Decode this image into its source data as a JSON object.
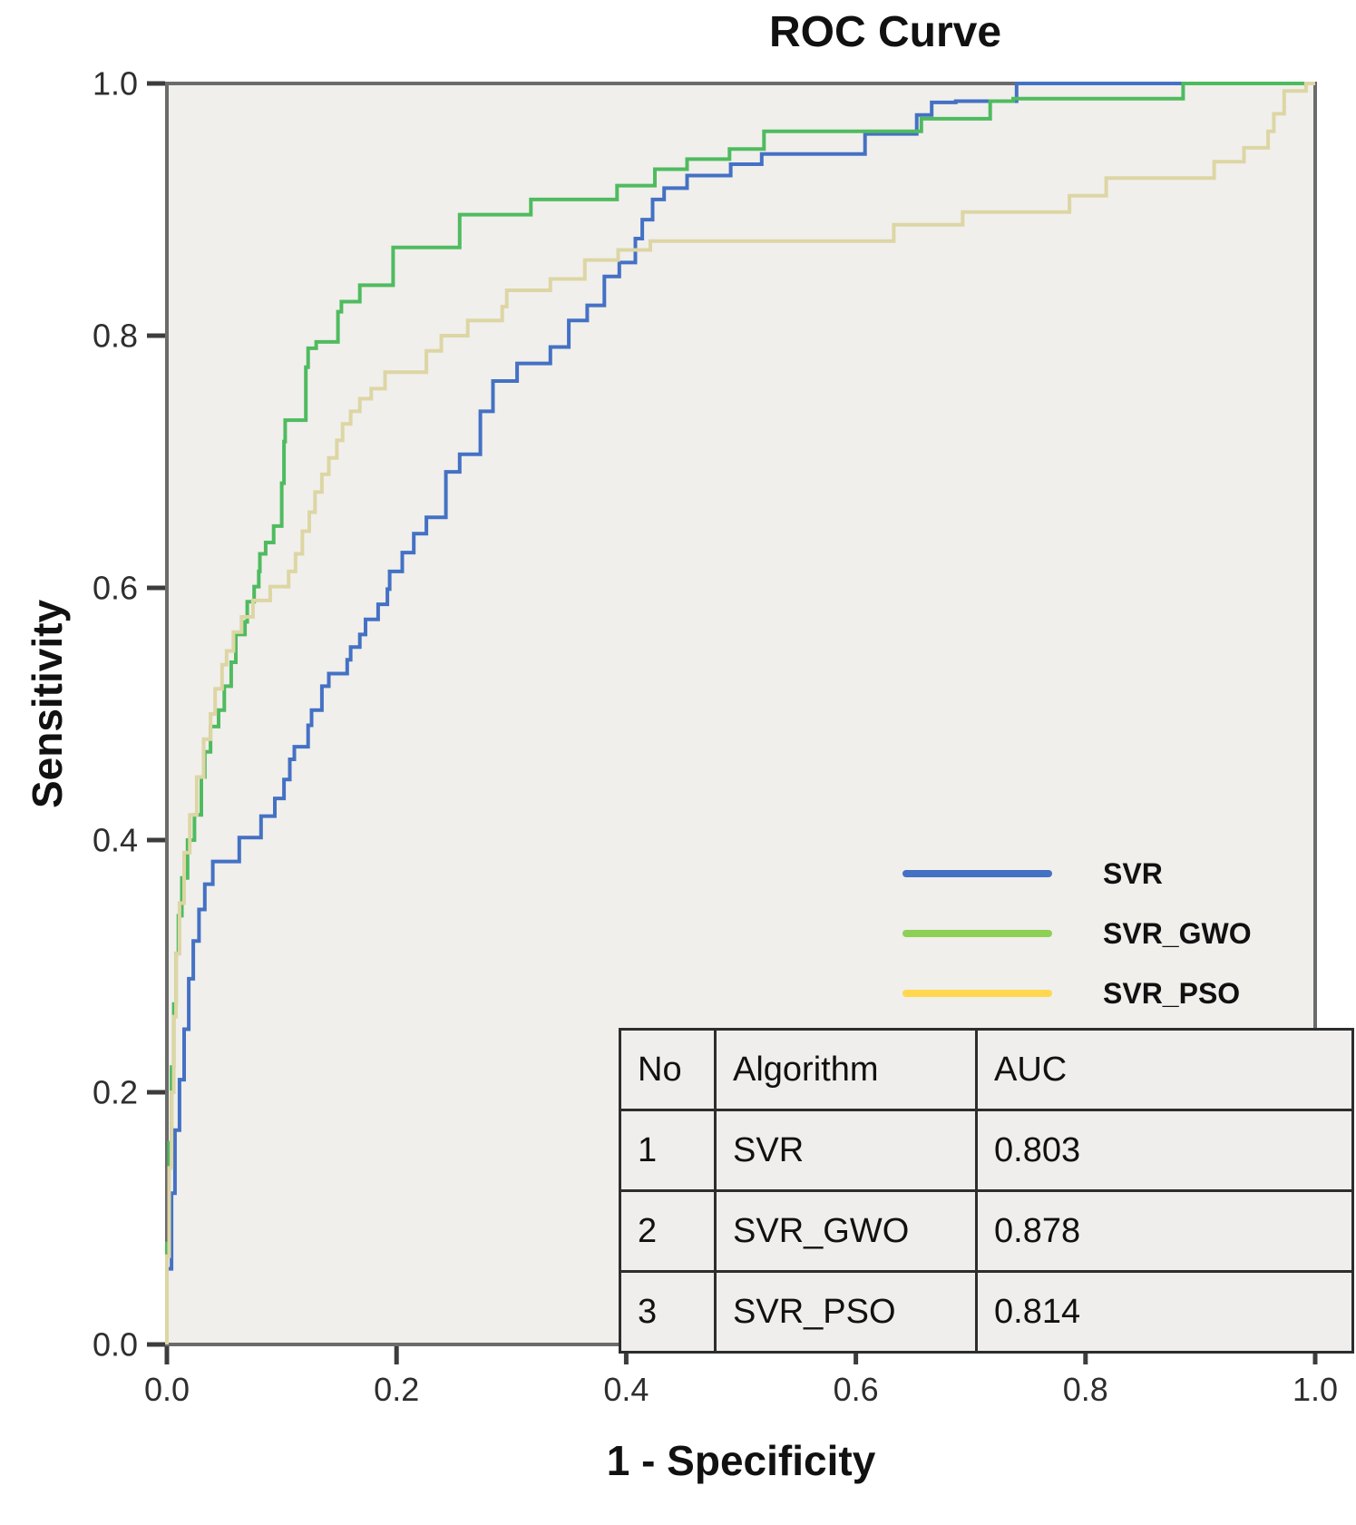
{
  "title": "ROC Curve",
  "axes": {
    "x_label": "1 - Specificity",
    "y_label": "Sensitivity",
    "x_ticks": [
      "0.0",
      "0.2",
      "0.4",
      "0.6",
      "0.8",
      "1.0"
    ],
    "y_ticks": [
      "0.0",
      "0.2",
      "0.4",
      "0.6",
      "0.8",
      "1.0"
    ]
  },
  "legend": [
    {
      "label": "SVR",
      "color": "#4471c4"
    },
    {
      "label": "SVR_GWO",
      "color": "#8ed055"
    },
    {
      "label": "SVR_PSO",
      "color": "#ffd84f"
    }
  ],
  "auc_table": {
    "columns": [
      "No",
      "Algorithm",
      "AUC"
    ],
    "rows": [
      [
        "1",
        "SVR",
        "0.803"
      ],
      [
        "2",
        "SVR_GWO",
        "0.878"
      ],
      [
        "3",
        "SVR_PSO",
        "0.814"
      ]
    ]
  },
  "colors": {
    "plot_background": "#f0efec",
    "plot_frame": "#6b6b6b",
    "tick": "#3c3c3c"
  },
  "chart_data": {
    "type": "line",
    "subtype": "roc-step",
    "title": "ROC Curve",
    "xlabel": "1 - Specificity",
    "ylabel": "Sensitivity",
    "xlim": [
      0,
      1
    ],
    "ylim": [
      0,
      1
    ],
    "grid": false,
    "legend_position": "right-middle",
    "series": [
      {
        "name": "SVR",
        "auc": 0.803,
        "color": "#4471c4",
        "points": [
          [
            0,
            0
          ],
          [
            0.004,
            0.06
          ],
          [
            0.007,
            0.12
          ],
          [
            0.011,
            0.17
          ],
          [
            0.015,
            0.21
          ],
          [
            0.019,
            0.25
          ],
          [
            0.023,
            0.29
          ],
          [
            0.028,
            0.32
          ],
          [
            0.033,
            0.345
          ],
          [
            0.04,
            0.365
          ],
          [
            0.063,
            0.383
          ],
          [
            0.082,
            0.402
          ],
          [
            0.094,
            0.419
          ],
          [
            0.102,
            0.433
          ],
          [
            0.107,
            0.448
          ],
          [
            0.111,
            0.464
          ],
          [
            0.123,
            0.474
          ],
          [
            0.126,
            0.491
          ],
          [
            0.135,
            0.503
          ],
          [
            0.141,
            0.522
          ],
          [
            0.157,
            0.532
          ],
          [
            0.16,
            0.543
          ],
          [
            0.168,
            0.553
          ],
          [
            0.173,
            0.563
          ],
          [
            0.184,
            0.575
          ],
          [
            0.192,
            0.587
          ],
          [
            0.194,
            0.599
          ],
          [
            0.205,
            0.613
          ],
          [
            0.215,
            0.628
          ],
          [
            0.226,
            0.643
          ],
          [
            0.243,
            0.656
          ],
          [
            0.255,
            0.692
          ],
          [
            0.273,
            0.706
          ],
          [
            0.284,
            0.74
          ],
          [
            0.305,
            0.764
          ],
          [
            0.334,
            0.778
          ],
          [
            0.35,
            0.791
          ],
          [
            0.366,
            0.812
          ],
          [
            0.381,
            0.824
          ],
          [
            0.394,
            0.847
          ],
          [
            0.408,
            0.858
          ],
          [
            0.414,
            0.877
          ],
          [
            0.423,
            0.892
          ],
          [
            0.433,
            0.908
          ],
          [
            0.453,
            0.917
          ],
          [
            0.491,
            0.927
          ],
          [
            0.518,
            0.936
          ],
          [
            0.608,
            0.944
          ],
          [
            0.653,
            0.96
          ],
          [
            0.666,
            0.975
          ],
          [
            0.687,
            0.985
          ],
          [
            0.74,
            0.986
          ],
          [
            0.793,
            1.0
          ],
          [
            1.0,
            1.0
          ]
        ]
      },
      {
        "name": "SVR_GWO",
        "auc": 0.878,
        "color": "#4fbb5f",
        "points": [
          [
            0,
            0
          ],
          [
            0.002,
            0.08
          ],
          [
            0.004,
            0.16
          ],
          [
            0.006,
            0.22
          ],
          [
            0.008,
            0.27
          ],
          [
            0.01,
            0.31
          ],
          [
            0.013,
            0.34
          ],
          [
            0.018,
            0.37
          ],
          [
            0.024,
            0.4
          ],
          [
            0.03,
            0.42
          ],
          [
            0.033,
            0.45
          ],
          [
            0.038,
            0.47
          ],
          [
            0.045,
            0.49
          ],
          [
            0.05,
            0.503
          ],
          [
            0.056,
            0.522
          ],
          [
            0.06,
            0.541
          ],
          [
            0.068,
            0.563
          ],
          [
            0.07,
            0.573
          ],
          [
            0.076,
            0.589
          ],
          [
            0.08,
            0.601
          ],
          [
            0.081,
            0.613
          ],
          [
            0.086,
            0.627
          ],
          [
            0.093,
            0.636
          ],
          [
            0.1,
            0.649
          ],
          [
            0.102,
            0.683
          ],
          [
            0.103,
            0.716
          ],
          [
            0.121,
            0.733
          ],
          [
            0.123,
            0.775
          ],
          [
            0.13,
            0.79
          ],
          [
            0.149,
            0.795
          ],
          [
            0.152,
            0.819
          ],
          [
            0.168,
            0.827
          ],
          [
            0.197,
            0.84
          ],
          [
            0.255,
            0.87
          ],
          [
            0.317,
            0.896
          ],
          [
            0.392,
            0.908
          ],
          [
            0.425,
            0.919
          ],
          [
            0.453,
            0.932
          ],
          [
            0.49,
            0.94
          ],
          [
            0.52,
            0.948
          ],
          [
            0.657,
            0.962
          ],
          [
            0.717,
            0.972
          ],
          [
            0.737,
            0.986
          ],
          [
            0.885,
            0.988
          ],
          [
            0.886,
            1.0
          ],
          [
            1.0,
            1.0
          ]
        ]
      },
      {
        "name": "SVR_PSO",
        "auc": 0.814,
        "color": "#ddd6a4",
        "points": [
          [
            0,
            0
          ],
          [
            0.002,
            0.07
          ],
          [
            0.004,
            0.14
          ],
          [
            0.006,
            0.2
          ],
          [
            0.008,
            0.26
          ],
          [
            0.011,
            0.31
          ],
          [
            0.015,
            0.35
          ],
          [
            0.02,
            0.39
          ],
          [
            0.026,
            0.42
          ],
          [
            0.032,
            0.45
          ],
          [
            0.038,
            0.48
          ],
          [
            0.042,
            0.5
          ],
          [
            0.048,
            0.52
          ],
          [
            0.052,
            0.539
          ],
          [
            0.058,
            0.55
          ],
          [
            0.065,
            0.565
          ],
          [
            0.075,
            0.577
          ],
          [
            0.09,
            0.59
          ],
          [
            0.106,
            0.601
          ],
          [
            0.112,
            0.613
          ],
          [
            0.118,
            0.627
          ],
          [
            0.124,
            0.645
          ],
          [
            0.129,
            0.66
          ],
          [
            0.135,
            0.676
          ],
          [
            0.141,
            0.69
          ],
          [
            0.148,
            0.703
          ],
          [
            0.153,
            0.717
          ],
          [
            0.16,
            0.73
          ],
          [
            0.168,
            0.74
          ],
          [
            0.178,
            0.75
          ],
          [
            0.19,
            0.758
          ],
          [
            0.226,
            0.771
          ],
          [
            0.239,
            0.788
          ],
          [
            0.262,
            0.8
          ],
          [
            0.292,
            0.812
          ],
          [
            0.296,
            0.823
          ],
          [
            0.334,
            0.836
          ],
          [
            0.364,
            0.845
          ],
          [
            0.393,
            0.86
          ],
          [
            0.421,
            0.868
          ],
          [
            0.633,
            0.875
          ],
          [
            0.693,
            0.888
          ],
          [
            0.786,
            0.898
          ],
          [
            0.818,
            0.911
          ],
          [
            0.912,
            0.925
          ],
          [
            0.938,
            0.938
          ],
          [
            0.959,
            0.949
          ],
          [
            0.964,
            0.962
          ],
          [
            0.973,
            0.976
          ],
          [
            0.992,
            0.994
          ],
          [
            1.0,
            1.0
          ]
        ]
      }
    ]
  }
}
